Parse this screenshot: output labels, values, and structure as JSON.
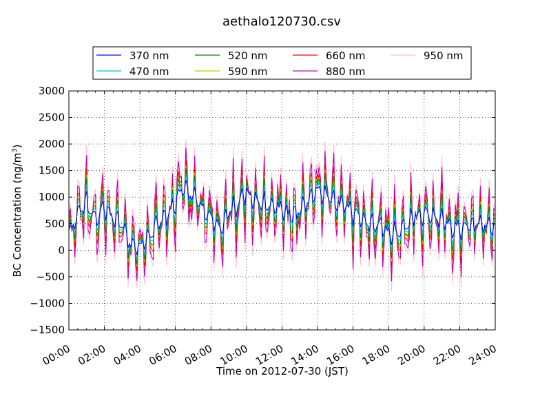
{
  "chart_data": {
    "type": "line",
    "title": "aethalo120730.csv",
    "xlabel": "Time on 2012-07-30 (JST)",
    "ylabel": "BC Concentration (ng/m",
    "ylabel_unit_sup": "3",
    "ylabel_close": ")",
    "xlim_hours": [
      0,
      24
    ],
    "ylim": [
      -1500,
      3000
    ],
    "x_ticks": [
      "00:00",
      "02:00",
      "04:00",
      "06:00",
      "08:00",
      "10:00",
      "12:00",
      "14:00",
      "16:00",
      "18:00",
      "20:00",
      "22:00",
      "24:00"
    ],
    "y_ticks": [
      3000,
      2500,
      2000,
      1500,
      1000,
      500,
      0,
      -500,
      -1000,
      -1500
    ],
    "grid": true,
    "legend_position": "top-center, above plot",
    "sample_interval_minutes": 5,
    "series": [
      {
        "name": "370 nm",
        "color": "#0000ff",
        "amp": 0.35
      },
      {
        "name": "470 nm",
        "color": "#00bfbf",
        "amp": 0.55
      },
      {
        "name": "520 nm",
        "color": "#008000",
        "amp": 0.75
      },
      {
        "name": "590 nm",
        "color": "#bfbf00",
        "amp": 0.85
      },
      {
        "name": "660 nm",
        "color": "#ff0000",
        "amp": 1.05
      },
      {
        "name": "880 nm",
        "color": "#bf00bf",
        "amp": 1.45
      },
      {
        "name": "950 nm",
        "color": "#ffc0cb",
        "amp": 1.75
      }
    ],
    "base_profile": {
      "hours": [
        0,
        0.5,
        1,
        1.5,
        2,
        2.5,
        3,
        3.5,
        4,
        4.5,
        5,
        5.5,
        6,
        6.5,
        7,
        7.5,
        8,
        8.5,
        9,
        9.5,
        10,
        10.5,
        11,
        11.5,
        12,
        12.5,
        13,
        13.5,
        14,
        14.5,
        15,
        15.5,
        16,
        16.5,
        17,
        17.5,
        18,
        18.5,
        19,
        19.5,
        20,
        20.5,
        21,
        21.5,
        22,
        22.5,
        23,
        23.5,
        24
      ],
      "values": [
        300,
        700,
        900,
        600,
        800,
        600,
        500,
        100,
        50,
        300,
        500,
        650,
        900,
        1150,
        1050,
        800,
        600,
        400,
        700,
        900,
        1100,
        950,
        900,
        850,
        750,
        700,
        750,
        950,
        1100,
        1000,
        900,
        850,
        700,
        600,
        500,
        500,
        300,
        350,
        500,
        650,
        700,
        650,
        550,
        450,
        400,
        450,
        500,
        480,
        400
      ]
    },
    "oscillation_amplitude": 650
  }
}
